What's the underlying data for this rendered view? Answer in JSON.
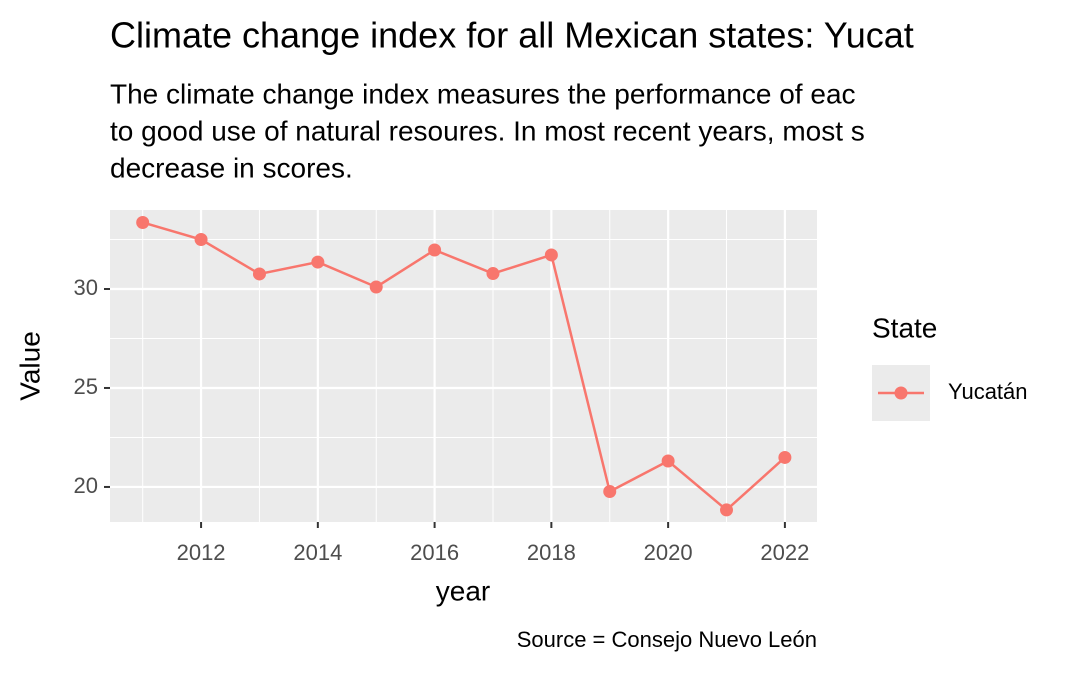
{
  "chart_data": {
    "type": "line",
    "title": "Climate change index for all Mexican states: Yucat",
    "subtitle": [
      "The climate change index measures the performance of eac",
      "to good use of natural resoures. In most recent years, most s",
      "decrease in scores."
    ],
    "x_label": "year",
    "y_label": "Value",
    "caption": "Source = Consejo Nuevo León",
    "legend_title": "State",
    "x": [
      2011,
      2012,
      2013,
      2014,
      2015,
      2016,
      2017,
      2018,
      2019,
      2020,
      2021,
      2022
    ],
    "series": [
      {
        "name": "Yucatán",
        "color": "#f8766d",
        "values": [
          33.36,
          32.5,
          30.76,
          31.36,
          30.1,
          31.97,
          30.78,
          31.72,
          19.77,
          21.31,
          18.84,
          21.49
        ]
      }
    ],
    "xlim": [
      2010.44,
      2022.55
    ],
    "xticks": [
      2012,
      2014,
      2016,
      2018,
      2020,
      2022
    ],
    "ylim": [
      18.23,
      33.99
    ],
    "yticks": [
      20,
      25,
      30
    ],
    "grid": true,
    "legend": "right"
  }
}
